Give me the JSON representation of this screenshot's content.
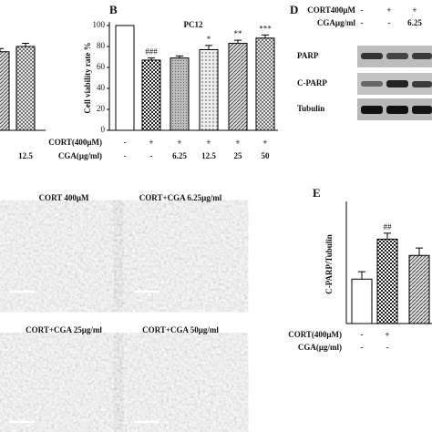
{
  "chart_data": [
    {
      "type": "bar",
      "categories": [
        null,
        "12.5"
      ],
      "values": [
        75,
        80
      ],
      "errors": [
        3,
        3
      ],
      "ylim": [
        0,
        100
      ]
    },
    {
      "type": "bar",
      "title": "PC12",
      "ylabel": "Cell viability rate %",
      "values": [
        100,
        67,
        69,
        77,
        83,
        88
      ],
      "errors": [
        0,
        2,
        2,
        4,
        3,
        3
      ],
      "annotations": [
        null,
        "###",
        null,
        "*",
        "**",
        "***"
      ],
      "rows": [
        {
          "label": "CORT(400μM)",
          "values": [
            "-",
            "+",
            "+",
            "+",
            "+",
            "+"
          ]
        },
        {
          "label": "CGA(μg/ml)",
          "values": [
            "-",
            "-",
            "6.25",
            "12.5",
            "25",
            "50"
          ]
        }
      ],
      "ylim": [
        0,
        100
      ],
      "yticks": [
        0,
        20,
        40,
        60,
        80,
        100
      ]
    },
    {
      "type": "bar",
      "ylabel": "C-PARP/Tubulin",
      "values": [
        0.3,
        0.57,
        0.46
      ],
      "errors": [
        0.05,
        0.04,
        0.05
      ],
      "annotations": [
        null,
        "##",
        null
      ],
      "rows": [
        {
          "label": "CORT(400μM)",
          "values": [
            "-",
            "+",
            null
          ]
        },
        {
          "label": "CGA(μg/ml)",
          "values": [
            "-",
            "-",
            null
          ]
        }
      ],
      "ylim": [
        0,
        0.8
      ]
    }
  ],
  "panels": {
    "b": "B",
    "d": "D",
    "e": "E"
  },
  "blot": {
    "rows": [
      {
        "label": "CORT400μM",
        "values": [
          "-",
          "+",
          "+"
        ]
      },
      {
        "label": "CGAμg/ml",
        "values": [
          "-",
          "-",
          "6.25"
        ]
      }
    ],
    "bands": [
      "PARP",
      "C-PARP",
      "Tubulin"
    ]
  },
  "micrographs": [
    "CORT 400μM",
    "CORT+CGA 6.25μg/ml",
    "CORT+CGA 25μg/ml",
    "CORT+CGA 50μg/ml"
  ]
}
